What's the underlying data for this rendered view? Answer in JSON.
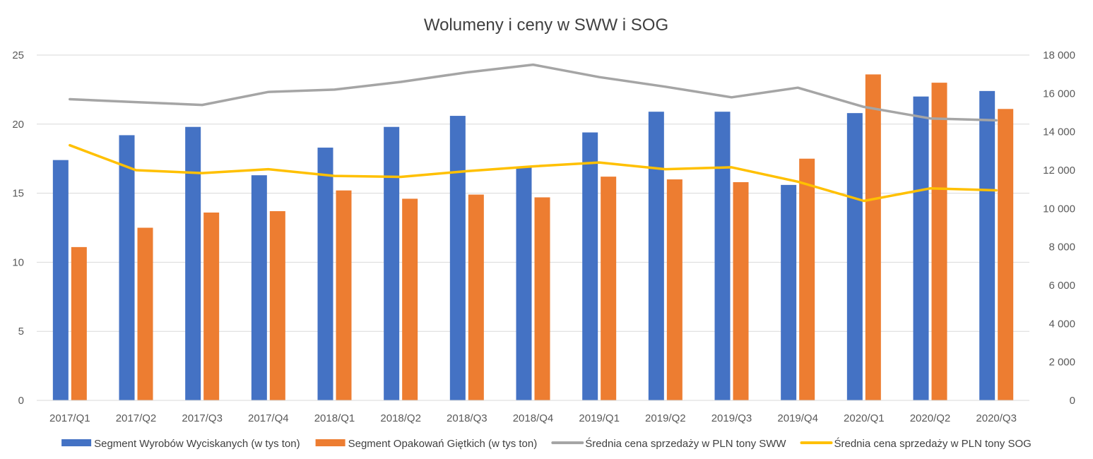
{
  "chart_data": {
    "type": "bar",
    "title": "Wolumeny i ceny w SWW i SOG",
    "categories": [
      "2017/Q1",
      "2017/Q2",
      "2017/Q3",
      "2017/Q4",
      "2018/Q1",
      "2018/Q2",
      "2018/Q3",
      "2018/Q4",
      "2019/Q1",
      "2019/Q2",
      "2019/Q3",
      "2019/Q4",
      "2020/Q1",
      "2020/Q2",
      "2020/Q3"
    ],
    "y_left": {
      "min": 0,
      "max": 25,
      "ticks": [
        0,
        5,
        10,
        15,
        20,
        25
      ],
      "tick_labels": [
        "0",
        "5",
        "10",
        "15",
        "20",
        "25"
      ]
    },
    "y_right": {
      "min": 0,
      "max": 18000,
      "ticks": [
        0,
        2000,
        4000,
        6000,
        8000,
        10000,
        12000,
        14000,
        16000,
        18000
      ],
      "tick_labels": [
        "0",
        "2 000",
        "4 000",
        "6 000",
        "8 000",
        "10 000",
        "12 000",
        "14 000",
        "16 000",
        "18 000"
      ]
    },
    "grid": true,
    "legend_position": "bottom",
    "series": [
      {
        "name": "Segment Wyrobów Wyciskanych (w tys ton)",
        "kind": "bar",
        "axis": "left",
        "color": "#4472C4",
        "values": [
          17.4,
          19.2,
          19.8,
          16.3,
          18.3,
          19.8,
          20.6,
          16.9,
          19.4,
          20.9,
          20.9,
          15.6,
          20.8,
          22.0,
          22.4
        ]
      },
      {
        "name": "Segment Opakowań Giętkich (w tys ton)",
        "kind": "bar",
        "axis": "left",
        "color": "#ED7D31",
        "values": [
          11.1,
          12.5,
          13.6,
          13.7,
          15.2,
          14.6,
          14.9,
          14.7,
          16.2,
          16.0,
          15.8,
          17.5,
          23.6,
          23.0,
          21.1
        ]
      },
      {
        "name": "Średnia cena sprzedaży w PLN tony SWW",
        "kind": "line",
        "axis": "right",
        "color": "#A5A5A5",
        "values": [
          15700,
          15550,
          15400,
          16080,
          16200,
          16600,
          17100,
          17500,
          16850,
          16350,
          15800,
          16300,
          15300,
          14700,
          14600
        ]
      },
      {
        "name": "Średnia cena sprzedaży w PLN tony SOG",
        "kind": "line",
        "axis": "right",
        "color": "#FFC000",
        "values": [
          13300,
          12000,
          11850,
          12050,
          11700,
          11650,
          11950,
          12200,
          12400,
          12050,
          12150,
          11400,
          10400,
          11050,
          10950
        ]
      }
    ]
  }
}
